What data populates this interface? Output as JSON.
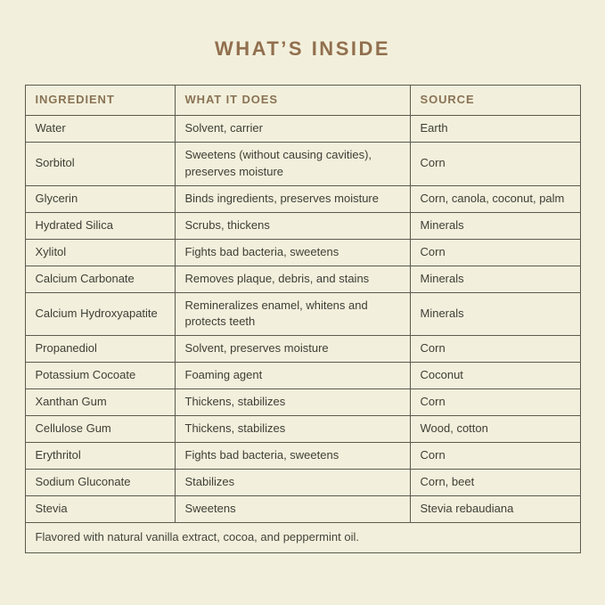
{
  "page": {
    "title": "WHAT’S INSIDE",
    "background_color": "#f2f0dc",
    "title_color": "#916f4e",
    "header_text_color": "#8a7355",
    "body_text_color": "#3f3e35",
    "border_color": "#5b5a4e"
  },
  "table": {
    "columns": [
      {
        "label": "INGREDIENT"
      },
      {
        "label": "WHAT IT DOES"
      },
      {
        "label": "SOURCE"
      }
    ],
    "rows": [
      {
        "ingredient": "Water",
        "what_it_does": "Solvent, carrier",
        "source": "Earth"
      },
      {
        "ingredient": "Sorbitol",
        "what_it_does": "Sweetens (without causing cavities), preserves moisture",
        "source": "Corn"
      },
      {
        "ingredient": "Glycerin",
        "what_it_does": "Binds ingredients, preserves moisture",
        "source": "Corn, canola, coconut, palm"
      },
      {
        "ingredient": "Hydrated Silica",
        "what_it_does": "Scrubs, thickens",
        "source": "Minerals"
      },
      {
        "ingredient": "Xylitol",
        "what_it_does": "Fights bad bacteria, sweetens",
        "source": "Corn"
      },
      {
        "ingredient": "Calcium Carbonate",
        "what_it_does": "Removes plaque, debris, and stains",
        "source": "Minerals"
      },
      {
        "ingredient": "Calcium Hydroxyapatite",
        "what_it_does": "Remineralizes enamel, whitens and protects teeth",
        "source": "Minerals"
      },
      {
        "ingredient": "Propanediol",
        "what_it_does": "Solvent, preserves moisture",
        "source": "Corn"
      },
      {
        "ingredient": "Potassium Cocoate",
        "what_it_does": "Foaming agent",
        "source": "Coconut"
      },
      {
        "ingredient": "Xanthan Gum",
        "what_it_does": "Thickens, stabilizes",
        "source": "Corn"
      },
      {
        "ingredient": "Cellulose Gum",
        "what_it_does": "Thickens, stabilizes",
        "source": "Wood, cotton"
      },
      {
        "ingredient": "Erythritol",
        "what_it_does": "Fights bad bacteria, sweetens",
        "source": "Corn"
      },
      {
        "ingredient": "Sodium Gluconate",
        "what_it_does": "Stabilizes",
        "source": "Corn, beet"
      },
      {
        "ingredient": "Stevia",
        "what_it_does": "Sweetens",
        "source": "Stevia rebaudiana"
      }
    ],
    "footnote": "Flavored with natural vanilla extract, cocoa, and peppermint oil."
  }
}
